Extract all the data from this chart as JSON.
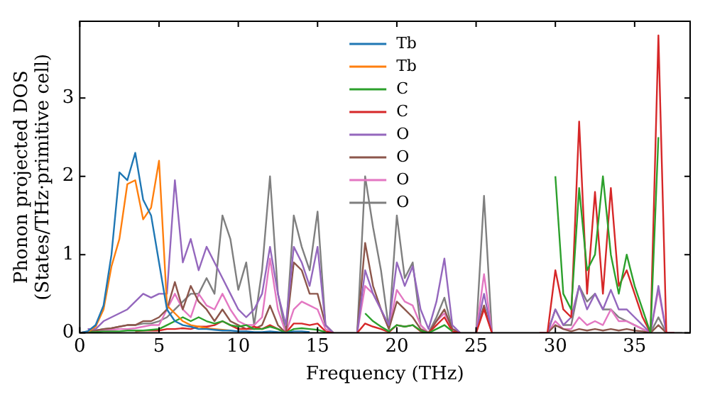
{
  "chart_data": {
    "type": "line",
    "xlabel": "Frequency (THz)",
    "ylabel": "Phonon projected DOS\n(States/THz·primitive cell)",
    "x": [
      0,
      0.5,
      1,
      1.5,
      2,
      2.5,
      3,
      3.5,
      4,
      4.5,
      5,
      5.5,
      6,
      6.5,
      7,
      7.5,
      8,
      8.5,
      9,
      9.5,
      10,
      10.5,
      11,
      11.5,
      12,
      12.5,
      13,
      13.5,
      14,
      14.5,
      15,
      15.5,
      16,
      16.5,
      17,
      17.5,
      18,
      18.5,
      19,
      19.5,
      20,
      20.5,
      21,
      21.5,
      22,
      22.5,
      23,
      23.5,
      24,
      24.5,
      25,
      25.5,
      26,
      26.5,
      27,
      27.5,
      28,
      28.5,
      29,
      29.5,
      30,
      30.5,
      31,
      31.5,
      32,
      32.5,
      33,
      33.5,
      34,
      34.5,
      35,
      35.5,
      36,
      36.5,
      37,
      37.5,
      38
    ],
    "xlim": [
      0,
      38.5
    ],
    "ylim": [
      0,
      3.98
    ],
    "xticks": [
      0,
      5,
      10,
      15,
      20,
      25,
      30,
      35
    ],
    "yticks": [
      0,
      1,
      2,
      3
    ],
    "legend": "top",
    "marker": "none",
    "line_style": "solid",
    "grid": false,
    "series": [
      {
        "name": "Tb",
        "color": "#1f77b4",
        "values": [
          0,
          0.02,
          0.1,
          0.35,
          1.0,
          2.05,
          1.95,
          2.3,
          1.7,
          1.5,
          0.9,
          0.3,
          0.15,
          0.1,
          0.08,
          0.05,
          0.05,
          0.04,
          0.03,
          0.03,
          0.02,
          0.02,
          0.01,
          0.01,
          0.02,
          0.01,
          0,
          0.02,
          0.02,
          0.01,
          null,
          null,
          null,
          null,
          null,
          null,
          null,
          null,
          null,
          null,
          null,
          null,
          null,
          null,
          null,
          null,
          null,
          null,
          null,
          null,
          null,
          null,
          null,
          null,
          null,
          null,
          null,
          null,
          null,
          null,
          null,
          null,
          null,
          null,
          null,
          null,
          null,
          null,
          null,
          null,
          null,
          null,
          null,
          null,
          null,
          null,
          null
        ]
      },
      {
        "name": "Tb",
        "color": "#ff7f0e",
        "values": [
          null,
          0.01,
          0.08,
          0.3,
          0.85,
          1.2,
          1.9,
          1.95,
          1.45,
          1.6,
          2.2,
          0.35,
          0.25,
          0.15,
          0.1,
          0.08,
          0.06,
          0.05,
          0.04,
          0.03,
          null,
          null,
          null,
          null,
          null,
          null,
          null,
          null,
          null,
          null,
          null,
          null,
          null,
          null,
          null,
          null,
          null,
          null,
          null,
          null,
          null,
          null,
          null,
          null,
          null,
          null,
          null,
          null,
          null,
          null,
          null,
          null,
          null,
          null,
          null,
          null,
          null,
          null,
          null,
          null,
          null,
          null,
          null,
          null,
          null,
          null,
          null,
          null,
          null,
          null,
          null,
          null,
          null,
          null,
          null,
          null,
          null
        ]
      },
      {
        "name": "C",
        "color": "#2ca02c",
        "values": [
          null,
          0.01,
          0.01,
          0.02,
          0.02,
          0.02,
          0.03,
          0.03,
          0.03,
          0.04,
          0.05,
          0.1,
          0.15,
          0.2,
          0.15,
          0.2,
          0.15,
          0.12,
          0.15,
          0.1,
          0.08,
          0.1,
          0.05,
          0.05,
          0.08,
          0.05,
          0,
          0.05,
          0.06,
          0.05,
          0.04,
          0.01,
          null,
          null,
          null,
          null,
          0.25,
          0.15,
          0.08,
          0.02,
          0.1,
          0.08,
          0.1,
          0.03,
          0,
          0.05,
          0.1,
          0.02,
          null,
          null,
          null,
          null,
          null,
          null,
          null,
          null,
          null,
          null,
          null,
          null,
          2.0,
          0.5,
          0.3,
          1.85,
          0.8,
          1.0,
          2.0,
          1.0,
          0.5,
          1.0,
          0.6,
          0.3,
          0,
          2.5,
          null,
          null,
          null
        ]
      },
      {
        "name": "C",
        "color": "#d62728",
        "values": [
          null,
          null,
          null,
          null,
          null,
          null,
          null,
          0.02,
          0.03,
          0.03,
          0.03,
          0.05,
          0.05,
          0.06,
          0.05,
          0.08,
          0.08,
          0.1,
          0.15,
          0.1,
          0.05,
          0.05,
          0.08,
          0.05,
          0.1,
          0.05,
          0,
          0.12,
          0.12,
          0.1,
          0.12,
          0.02,
          0,
          null,
          null,
          0,
          0.12,
          0.08,
          0.05,
          0.01,
          0.1,
          0.08,
          0.1,
          0.02,
          0,
          0.1,
          0.2,
          0.02,
          0,
          null,
          0,
          0.3,
          0,
          null,
          null,
          null,
          null,
          null,
          0,
          0,
          0.8,
          0.3,
          0.2,
          2.7,
          0.5,
          1.8,
          0.5,
          1.85,
          0.6,
          0.8,
          0.5,
          0.2,
          0,
          3.8,
          0,
          0,
          null
        ]
      },
      {
        "name": "O",
        "color": "#9467bd",
        "values": [
          null,
          0.05,
          0.05,
          0.15,
          0.2,
          0.25,
          0.3,
          0.4,
          0.5,
          0.45,
          0.5,
          0.5,
          1.95,
          0.9,
          1.2,
          0.8,
          1.1,
          0.9,
          0.7,
          0.5,
          0.3,
          0.2,
          0.3,
          0.5,
          1.1,
          0.5,
          0.1,
          1.1,
          0.9,
          0.6,
          1.1,
          0.1,
          0,
          null,
          null,
          0,
          0.8,
          0.5,
          0.3,
          0.1,
          0.9,
          0.6,
          0.85,
          0.3,
          0.05,
          0.4,
          0.95,
          0.1,
          0,
          null,
          0,
          0.5,
          0,
          null,
          null,
          null,
          null,
          null,
          0,
          0,
          0.3,
          0.1,
          0.2,
          0.6,
          0.3,
          0.5,
          0.3,
          0.55,
          0.3,
          0.3,
          0.2,
          0.1,
          0,
          0.6,
          0,
          0,
          null
        ]
      },
      {
        "name": "O",
        "color": "#8c564b",
        "values": [
          null,
          0.02,
          0.03,
          0.05,
          0.06,
          0.08,
          0.1,
          0.1,
          0.15,
          0.15,
          0.2,
          0.3,
          0.65,
          0.3,
          0.6,
          0.4,
          0.3,
          0.15,
          0.3,
          0.15,
          0.1,
          0.05,
          0.05,
          0.1,
          0.35,
          0.1,
          0,
          0.9,
          0.8,
          0.5,
          0.5,
          0.1,
          0,
          null,
          null,
          0,
          1.15,
          0.6,
          0.3,
          0.05,
          0.4,
          0.3,
          0.2,
          0.05,
          0,
          0.15,
          0.3,
          0.05,
          0,
          null,
          0,
          0.35,
          0,
          null,
          null,
          null,
          null,
          null,
          0,
          0,
          0.1,
          0.05,
          0.02,
          0.05,
          0.03,
          0.05,
          0.03,
          0.05,
          0.03,
          0.05,
          0.03,
          0.02,
          0,
          0.1,
          0,
          0,
          null
        ]
      },
      {
        "name": "O",
        "color": "#e377c2",
        "values": [
          null,
          0.01,
          0.02,
          0.03,
          0.04,
          0.05,
          0.05,
          0.06,
          0.08,
          0.1,
          0.1,
          0.3,
          0.5,
          0.3,
          0.2,
          0.5,
          0.35,
          0.3,
          0.5,
          0.3,
          0.15,
          0.1,
          0.1,
          0.2,
          0.95,
          0.3,
          0,
          0.3,
          0.4,
          0.35,
          0.3,
          0.05,
          0,
          null,
          null,
          0,
          0.6,
          0.5,
          0.3,
          0.05,
          0.55,
          0.4,
          0.35,
          0.1,
          0,
          0.15,
          0.25,
          0.05,
          0,
          null,
          0,
          0.75,
          0,
          null,
          null,
          null,
          null,
          null,
          0,
          0,
          0.15,
          0.05,
          0.05,
          0.2,
          0.1,
          0.15,
          0.1,
          0.3,
          0.15,
          0.15,
          0.1,
          0.05,
          0,
          0.55,
          0,
          0,
          null
        ]
      },
      {
        "name": "O",
        "color": "#7f7f7f",
        "values": [
          0,
          0.02,
          0.03,
          0.05,
          0.06,
          0.08,
          0.1,
          0.1,
          0.12,
          0.12,
          0.15,
          0.2,
          0.3,
          0.4,
          0.5,
          0.5,
          0.7,
          0.5,
          1.5,
          1.2,
          0.55,
          0.9,
          0.1,
          0.8,
          2.0,
          0.5,
          0,
          1.5,
          1.1,
          0.8,
          1.55,
          0.1,
          0,
          0,
          0,
          0,
          2.0,
          1.35,
          0.8,
          0.05,
          1.5,
          0.7,
          0.9,
          0.1,
          0,
          0.2,
          0.45,
          0.05,
          0,
          0,
          0,
          1.75,
          0,
          0,
          0,
          0,
          0,
          0,
          0,
          0,
          0.3,
          0.1,
          0.1,
          0.6,
          0.4,
          0.5,
          0.3,
          0.3,
          0.2,
          0.15,
          0.1,
          0.05,
          0,
          0.2,
          0,
          0,
          0
        ]
      }
    ]
  }
}
